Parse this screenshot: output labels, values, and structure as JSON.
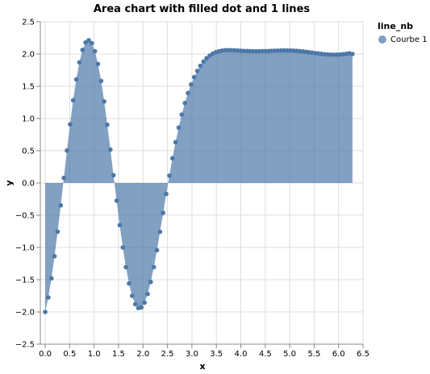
{
  "chart_data": {
    "type": "area",
    "title": "Area chart with filled dot and 1 lines",
    "xlabel": "x",
    "ylabel": "y",
    "xlim": [
      -0.1,
      6.5
    ],
    "ylim": [
      -2.5,
      2.5
    ],
    "xticks": [
      "0.0",
      "0.5",
      "1.0",
      "1.5",
      "2.0",
      "2.5",
      "3.0",
      "3.5",
      "4.0",
      "4.5",
      "5.0",
      "5.5",
      "6.0",
      "6.5"
    ],
    "yticks": [
      "2.5",
      "2.0",
      "1.5",
      "1.0",
      "0.5",
      "0.0",
      "−0.5",
      "−1.0",
      "−1.5",
      "−2.0",
      "−2.5"
    ],
    "grid": true,
    "legend": {
      "title": "line_nb",
      "placement": "top-right"
    },
    "series": [
      {
        "name": "Courbe 1",
        "color": "#4c78a8",
        "x": [
          0.0,
          0.063,
          0.127,
          0.19,
          0.254,
          0.317,
          0.381,
          0.444,
          0.508,
          0.571,
          0.635,
          0.698,
          0.762,
          0.825,
          0.889,
          0.952,
          1.016,
          1.079,
          1.143,
          1.206,
          1.269,
          1.333,
          1.396,
          1.46,
          1.523,
          1.587,
          1.65,
          1.714,
          1.777,
          1.841,
          1.904,
          1.967,
          2.031,
          2.094,
          2.158,
          2.221,
          2.285,
          2.348,
          2.412,
          2.475,
          2.539,
          2.602,
          2.665,
          2.729,
          2.792,
          2.856,
          2.919,
          2.983,
          3.046,
          3.11,
          3.173,
          3.237,
          3.3,
          3.363,
          3.427,
          3.49,
          3.554,
          3.617,
          3.681,
          3.744,
          3.808,
          3.871,
          3.935,
          3.998,
          4.061,
          4.125,
          4.188,
          4.252,
          4.315,
          4.379,
          4.442,
          4.506,
          4.569,
          4.633,
          4.696,
          4.759,
          4.823,
          4.886,
          4.95,
          5.013,
          5.077,
          5.14,
          5.204,
          5.267,
          5.331,
          5.394,
          5.457,
          5.521,
          5.584,
          5.648,
          5.711,
          5.775,
          5.838,
          5.902,
          5.965,
          6.029,
          6.092,
          6.155,
          6.219,
          6.283
        ],
        "y": [
          -2.0,
          -1.776,
          -1.479,
          -1.136,
          -0.755,
          -0.347,
          0.078,
          0.502,
          0.909,
          1.282,
          1.606,
          1.87,
          2.063,
          2.179,
          2.214,
          2.168,
          2.043,
          1.845,
          1.582,
          1.264,
          0.904,
          0.517,
          0.119,
          -0.275,
          -0.653,
          -1.0,
          -1.305,
          -1.558,
          -1.751,
          -1.879,
          -1.939,
          -1.93,
          -1.856,
          -1.722,
          -1.535,
          -1.305,
          -1.042,
          -0.757,
          -0.463,
          -0.17,
          0.114,
          0.383,
          0.632,
          0.858,
          1.06,
          1.239,
          1.394,
          1.527,
          1.641,
          1.737,
          1.817,
          1.882,
          1.934,
          1.975,
          2.006,
          2.028,
          2.043,
          2.053,
          2.058,
          2.06,
          2.059,
          2.057,
          2.054,
          2.051,
          2.048,
          2.046,
          2.044,
          2.043,
          2.043,
          2.043,
          2.044,
          2.045,
          2.047,
          2.049,
          2.051,
          2.053,
          2.054,
          2.055,
          2.055,
          2.054,
          2.052,
          2.049,
          2.045,
          2.04,
          2.034,
          2.028,
          2.021,
          2.014,
          2.008,
          2.002,
          1.997,
          1.993,
          1.99,
          1.989,
          1.99,
          1.992,
          1.996,
          2.002,
          2.01,
          2.0
        ]
      }
    ]
  }
}
